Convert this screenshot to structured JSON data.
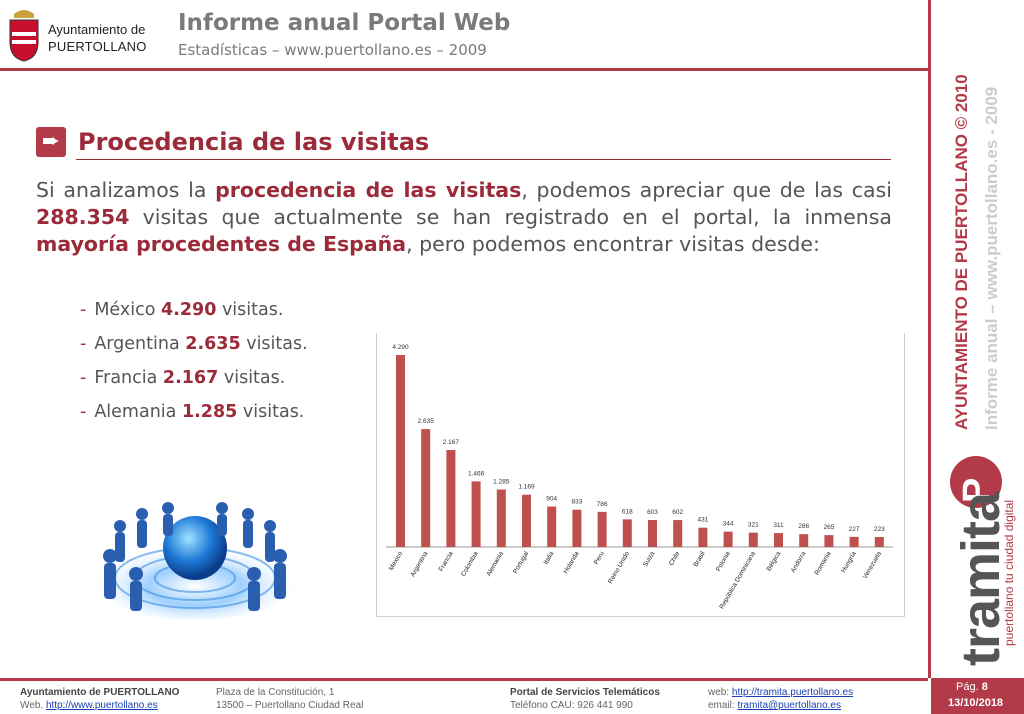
{
  "header": {
    "org_line1": "Ayuntamiento de",
    "org_line2": "PUERTOLLANO",
    "title": "Informe anual Portal Web",
    "subtitle": "Estadísticas – www.puertollano.es – 2009"
  },
  "side": {
    "main": "AYUNTAMIENTO DE PUERTOLLANO © 2010",
    "sub": "Informe anual – www.puertollano.es - 2009",
    "brand": "tramita",
    "brand_letter": "P",
    "tagline": "puertollano tu ciudad digital"
  },
  "section": {
    "icon": "arrow-down-right-icon",
    "title": "Procedencia de las visitas"
  },
  "paragraph": {
    "p1": "Si analizamos la ",
    "h1": "procedencia de las visitas",
    "p2": ", podemos apreciar que de las casi ",
    "h2": "288.354",
    "p3": " visitas que actualmente se han registrado en el portal, la inmensa ",
    "h3": "mayoría procedentes de España",
    "p4": ", pero podemos encontrar visitas desde:"
  },
  "bullets": [
    {
      "dash": "-",
      "country": "México",
      "value": "4.290",
      "suffix": "visitas."
    },
    {
      "dash": "-",
      "country": "Argentina",
      "value": "2.635",
      "suffix": "visitas."
    },
    {
      "dash": "-",
      "country": "Francia",
      "value": "2.167",
      "suffix": "visitas."
    },
    {
      "dash": "-",
      "country": "Alemania",
      "value": "1.285",
      "suffix": "visitas."
    }
  ],
  "chart_data": {
    "type": "bar",
    "categories": [
      "Mexico",
      "Argentina",
      "Francia",
      "Colombia",
      "Alemania",
      "Portugal",
      "Italia",
      "Holanda",
      "Peru",
      "Reino Unido",
      "Suiza",
      "Chile",
      "Brasil",
      "Polonia",
      "República Dominicana",
      "Bélgica",
      "Andorra",
      "Romania",
      "Hungría",
      "Venezuela"
    ],
    "values": [
      4290,
      2635,
      2167,
      1466,
      1285,
      1169,
      904,
      833,
      786,
      618,
      603,
      602,
      431,
      344,
      321,
      311,
      286,
      265,
      227,
      223
    ],
    "labels": [
      "4.290",
      "2.635",
      "2.167",
      "1.466",
      "1.285",
      "1.169",
      "904",
      "833",
      "786",
      "618",
      "603",
      "602",
      "431",
      "344",
      "321",
      "311",
      "286",
      "265",
      "227",
      "223"
    ],
    "bar_color": "#c0504d",
    "ylim": [
      0,
      4290
    ],
    "grid": false,
    "title": "",
    "xlabel": "",
    "ylabel": ""
  },
  "footer": {
    "org": "Ayuntamiento de PUERTOLLANO",
    "web_label": "Web. ",
    "web_link": "http://www.puertollano.es",
    "address1": "Plaza de la Constitución, 1",
    "address2": "13500 – Puertollano Ciudad Real",
    "portal": "Portal de Servicios Telemáticos",
    "phone": "Teléfono CAU: 926 441 990",
    "web2_label": "web: ",
    "web2_link": "http://tramita.puertollano.es",
    "email_label": "email: ",
    "email_link": "tramita@puertollano.es",
    "page_label": "Pág.",
    "page_number": "8",
    "date": "13/10/2018"
  }
}
